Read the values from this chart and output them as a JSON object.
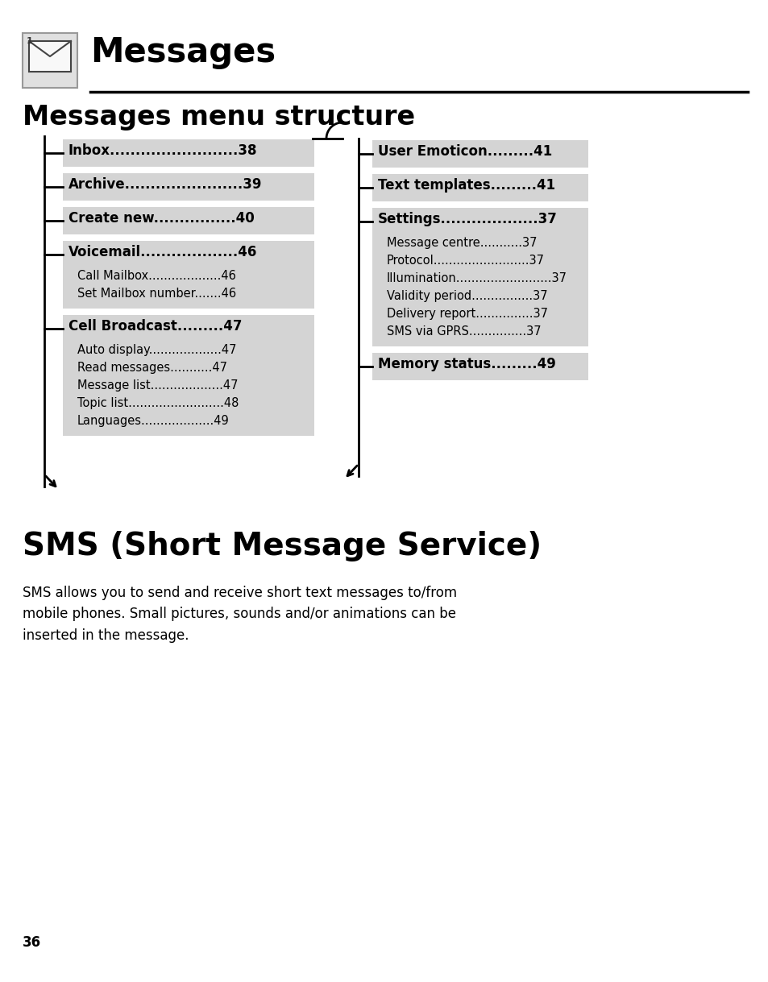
{
  "page_title": "Messages",
  "section1_title": "Messages menu structure",
  "section2_title": "SMS (Short Message Service)",
  "section2_body": "SMS allows you to send and receive short text messages to/from\nmobile phones. Small pictures, sounds and/or animations can be\ninserted in the message.",
  "page_number": "36",
  "left_menu": [
    {
      "label": "Inbox",
      "dots": ".........................",
      "page": "38",
      "bold": true,
      "sub": []
    },
    {
      "label": "Archive",
      "dots": ".......................",
      "page": "39",
      "bold": true,
      "sub": []
    },
    {
      "label": "Create new",
      "dots": "................",
      "page": "40",
      "bold": true,
      "sub": []
    },
    {
      "label": "Voicemail",
      "dots": "...................",
      "page": "46",
      "bold": true,
      "sub": [
        {
          "label": "Call Mailbox",
          "dots": "...................",
          "page": "46"
        },
        {
          "label": "Set Mailbox number",
          "dots": ".......",
          "page": "46"
        }
      ]
    },
    {
      "label": "Cell Broadcast",
      "dots": ".........",
      "page": "47",
      "bold": true,
      "sub": [
        {
          "label": "Auto display",
          "dots": "...................",
          "page": "47"
        },
        {
          "label": "Read messages",
          "dots": "...........",
          "page": "47"
        },
        {
          "label": "Message list",
          "dots": "...................",
          "page": "47"
        },
        {
          "label": "Topic list",
          "dots": ".........................",
          "page": "48"
        },
        {
          "label": "Languages",
          "dots": "...................",
          "page": "49"
        }
      ]
    }
  ],
  "right_menu": [
    {
      "label": "User Emoticon",
      "dots": ".........",
      "page": "41",
      "bold": true,
      "sub": []
    },
    {
      "label": "Text templates",
      "dots": ".........",
      "page": "41",
      "bold": true,
      "sub": []
    },
    {
      "label": "Settings",
      "dots": "...................",
      "page": "37",
      "bold": true,
      "sub": [
        {
          "label": "Message centre",
          "dots": "...........",
          "page": "37"
        },
        {
          "label": "Protocol",
          "dots": ".........................",
          "page": "37"
        },
        {
          "label": "Illumination",
          "dots": ".........................",
          "page": "37"
        },
        {
          "label": "Validity period",
          "dots": "................",
          "page": "37"
        },
        {
          "label": "Delivery report",
          "dots": "...............",
          "page": "37"
        },
        {
          "label": "SMS via GPRS",
          "dots": "...............",
          "page": "37"
        }
      ]
    },
    {
      "label": "Memory status",
      "dots": ".........",
      "page": "49",
      "bold": true,
      "sub": []
    }
  ],
  "bg_color": "#ffffff",
  "box_bg": "#d4d4d4",
  "text_color": "#000000"
}
